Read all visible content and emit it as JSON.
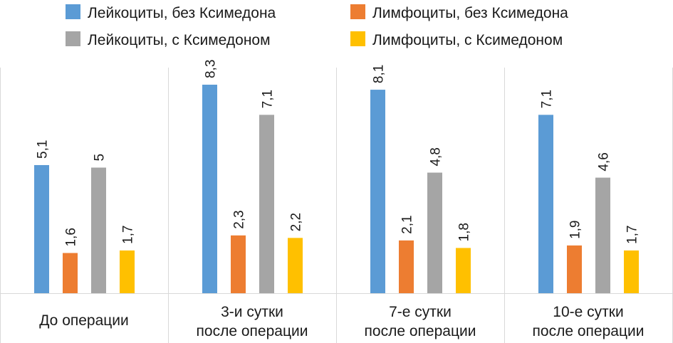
{
  "chart_data": {
    "type": "bar",
    "categories": [
      [
        "До операции"
      ],
      [
        "3-и сутки",
        "после операции"
      ],
      [
        "7-е сутки",
        "после операции"
      ],
      [
        "10-е сутки",
        "после операции"
      ]
    ],
    "series": [
      {
        "name": "Лейкоциты, без Ксимедона",
        "color": "#5b9bd5",
        "values": [
          5.1,
          8.3,
          8.1,
          7.1
        ],
        "labels": [
          "5,1",
          "8,3",
          "8,1",
          "7,1"
        ]
      },
      {
        "name": "Лимфоциты, без Ксимедона",
        "color": "#ed7d31",
        "values": [
          1.6,
          2.3,
          2.1,
          1.9
        ],
        "labels": [
          "1,6",
          "2,3",
          "2,1",
          "1,9"
        ]
      },
      {
        "name": "Лейкоциты, с Ксимедоном",
        "color": "#a5a5a5",
        "values": [
          5,
          7.1,
          4.8,
          4.6
        ],
        "labels": [
          "5",
          "7,1",
          "4,8",
          "4,6"
        ]
      },
      {
        "name": "Лимфоциты, с Ксимедоном",
        "color": "#ffc000",
        "values": [
          1.7,
          2.2,
          1.8,
          1.7
        ],
        "labels": [
          "1,7",
          "2,2",
          "1,8",
          "1,7"
        ]
      }
    ],
    "ylim": [
      0,
      9
    ],
    "grid": false,
    "legend_position": "top"
  }
}
